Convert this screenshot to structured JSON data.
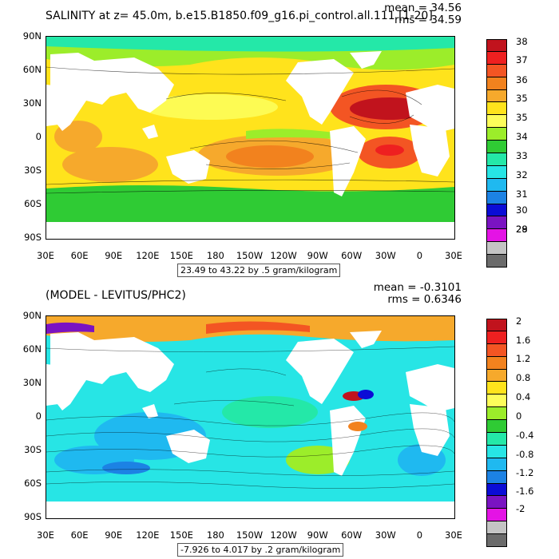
{
  "top": {
    "title": "SALINITY at z=  45.0m, b.e15.B1850.f09_g16.pi_control.all.111 [1-20]",
    "mean": "mean = 34.56",
    "rms": "rms = 34.59",
    "caption": "23.49 to 43.22 by .5 gram/kilogram",
    "colorbar": {
      "colors": [
        "#c1131d",
        "#ee2020",
        "#f35523",
        "#f2821e",
        "#f6a92c",
        "#ffe31c",
        "#fdfd5a",
        "#9ced2a",
        "#2fcb34",
        "#24e8a8",
        "#27e5e5",
        "#1fb9f0",
        "#1c82e4",
        "#0b0cd6",
        "#7a13c2",
        "#e413e5",
        "#c4c4c4",
        "#6b6b6b"
      ],
      "labels": [
        "38",
        "37",
        "36",
        "35",
        "35",
        "34",
        "33",
        "32",
        "31",
        "30",
        "29",
        "28"
      ]
    }
  },
  "bottom": {
    "title": "(MODEL - LEVITUS/PHC2)",
    "mean": "mean = -0.3101",
    "rms": "rms = 0.6346",
    "caption": "-7.926 to 4.017 by .2 gram/kilogram",
    "colorbar": {
      "colors": [
        "#c1131d",
        "#ee2020",
        "#f35523",
        "#f2821e",
        "#f6a92c",
        "#ffe31c",
        "#fdfd5a",
        "#9ced2a",
        "#2fcb34",
        "#24e8a8",
        "#27e5e5",
        "#1fb9f0",
        "#1c82e4",
        "#0b0cd6",
        "#7a13c2",
        "#e413e5",
        "#c4c4c4",
        "#6b6b6b"
      ],
      "labels": [
        "2",
        "1.6",
        "1.2",
        "0.8",
        "0.4",
        "0",
        "-0.4",
        "-0.8",
        "-1.2",
        "-1.6",
        "-2"
      ]
    }
  },
  "axes": {
    "ylabels": [
      "90N",
      "60N",
      "30N",
      "0",
      "30S",
      "60S",
      "90S"
    ],
    "xlabels": [
      "30E",
      "60E",
      "90E",
      "120E",
      "150E",
      "180",
      "150W",
      "120W",
      "90W",
      "60W",
      "30W",
      "0",
      "30E"
    ]
  }
}
